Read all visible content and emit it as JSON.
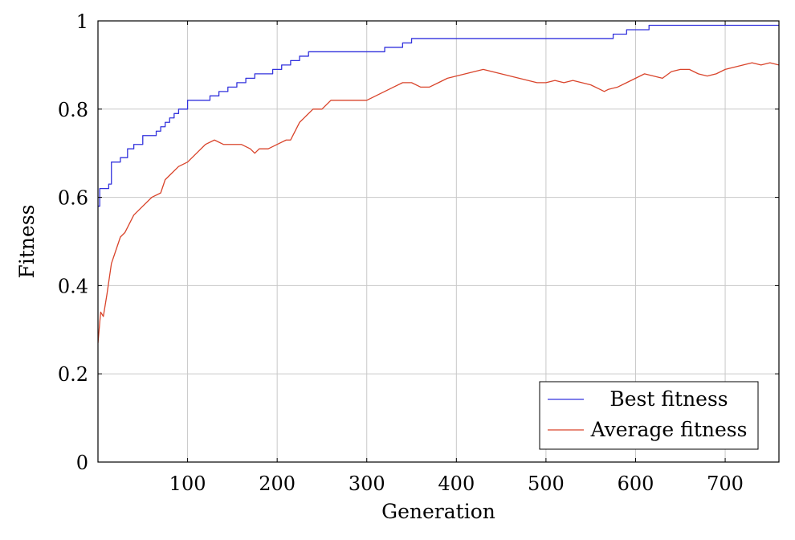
{
  "chart_data": {
    "type": "line",
    "title": "",
    "xlabel": "Generation",
    "ylabel": "Fitness",
    "xlim": [
      0,
      760
    ],
    "ylim": [
      0,
      1
    ],
    "xticks": [
      100,
      200,
      300,
      400,
      500,
      600,
      700
    ],
    "xtick_labels": [
      "100",
      "200",
      "300",
      "400",
      "500",
      "600",
      "700"
    ],
    "yticks": [
      0,
      0.2,
      0.4,
      0.6,
      0.8,
      1
    ],
    "ytick_labels": [
      "0",
      "0.2",
      "0.4",
      "0.6",
      "0.8",
      "1"
    ],
    "grid": true,
    "legend_position": "bottom-right",
    "series": [
      {
        "name": "Best fitness",
        "color": "#3333dd",
        "step": true,
        "x": [
          0,
          2,
          12,
          15,
          25,
          33,
          40,
          50,
          65,
          70,
          75,
          80,
          85,
          90,
          100,
          125,
          135,
          145,
          155,
          165,
          175,
          195,
          205,
          215,
          225,
          235,
          270,
          320,
          340,
          350,
          400,
          500,
          575,
          590,
          615,
          700,
          760
        ],
        "y": [
          0.58,
          0.62,
          0.63,
          0.68,
          0.69,
          0.71,
          0.72,
          0.74,
          0.75,
          0.76,
          0.77,
          0.78,
          0.79,
          0.8,
          0.82,
          0.83,
          0.84,
          0.85,
          0.86,
          0.87,
          0.88,
          0.89,
          0.9,
          0.91,
          0.92,
          0.93,
          0.93,
          0.94,
          0.95,
          0.96,
          0.96,
          0.96,
          0.97,
          0.98,
          0.99,
          0.99,
          0.99
        ]
      },
      {
        "name": "Average fitness",
        "color": "#d9442b",
        "step": false,
        "x": [
          0,
          3,
          6,
          10,
          15,
          20,
          25,
          30,
          40,
          50,
          60,
          70,
          75,
          80,
          90,
          100,
          110,
          120,
          130,
          140,
          150,
          160,
          170,
          175,
          180,
          190,
          200,
          210,
          215,
          225,
          230,
          240,
          250,
          255,
          260,
          270,
          280,
          290,
          300,
          310,
          320,
          330,
          340,
          350,
          360,
          370,
          380,
          390,
          400,
          410,
          420,
          430,
          440,
          450,
          460,
          470,
          480,
          490,
          500,
          510,
          520,
          530,
          540,
          550,
          560,
          565,
          570,
          580,
          590,
          600,
          610,
          620,
          630,
          640,
          650,
          660,
          670,
          680,
          690,
          700,
          710,
          720,
          730,
          740,
          750,
          760
        ],
        "y": [
          0.27,
          0.34,
          0.33,
          0.38,
          0.45,
          0.48,
          0.51,
          0.52,
          0.56,
          0.58,
          0.6,
          0.61,
          0.64,
          0.65,
          0.67,
          0.68,
          0.7,
          0.72,
          0.73,
          0.72,
          0.72,
          0.72,
          0.71,
          0.7,
          0.71,
          0.71,
          0.72,
          0.73,
          0.73,
          0.77,
          0.78,
          0.8,
          0.8,
          0.81,
          0.82,
          0.82,
          0.82,
          0.82,
          0.82,
          0.83,
          0.84,
          0.85,
          0.86,
          0.86,
          0.85,
          0.85,
          0.86,
          0.87,
          0.875,
          0.88,
          0.885,
          0.89,
          0.885,
          0.88,
          0.875,
          0.87,
          0.865,
          0.86,
          0.86,
          0.865,
          0.86,
          0.865,
          0.86,
          0.855,
          0.845,
          0.84,
          0.845,
          0.85,
          0.86,
          0.87,
          0.88,
          0.875,
          0.87,
          0.885,
          0.89,
          0.89,
          0.88,
          0.875,
          0.88,
          0.89,
          0.895,
          0.9,
          0.905,
          0.9,
          0.905,
          0.9
        ]
      }
    ]
  }
}
